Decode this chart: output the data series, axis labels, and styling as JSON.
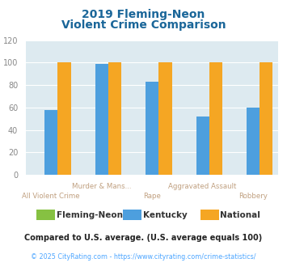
{
  "title_line1": "2019 Fleming-Neon",
  "title_line2": "Violent Crime Comparison",
  "categories": [
    "All Violent Crime",
    "Murder & Mans...",
    "Rape",
    "Aggravated Assault",
    "Robbery"
  ],
  "upper_label_indices": [
    1,
    3
  ],
  "lower_label_indices": [
    0,
    2,
    4
  ],
  "series": {
    "Fleming-Neon": [
      0,
      0,
      0,
      0,
      0
    ],
    "Kentucky": [
      58,
      99,
      83,
      52,
      60
    ],
    "National": [
      100,
      100,
      100,
      100,
      100
    ]
  },
  "colors": {
    "Fleming-Neon": "#86c142",
    "Kentucky": "#4d9fde",
    "National": "#f5a623"
  },
  "ylim": [
    0,
    120
  ],
  "yticks": [
    0,
    20,
    40,
    60,
    80,
    100,
    120
  ],
  "background_color": "#ddeaf0",
  "title_color": "#1a6699",
  "x_tick_label_color": "#c0a080",
  "y_tick_color": "#888888",
  "legend_text_color": "#333333",
  "footnote1": "Compared to U.S. average. (U.S. average equals 100)",
  "footnote2": "© 2025 CityRating.com - https://www.cityrating.com/crime-statistics/",
  "footnote1_color": "#222222",
  "footnote2_color": "#4da6ff",
  "bar_width": 0.26,
  "grid_color": "#ffffff",
  "outer_background": "#ffffff"
}
